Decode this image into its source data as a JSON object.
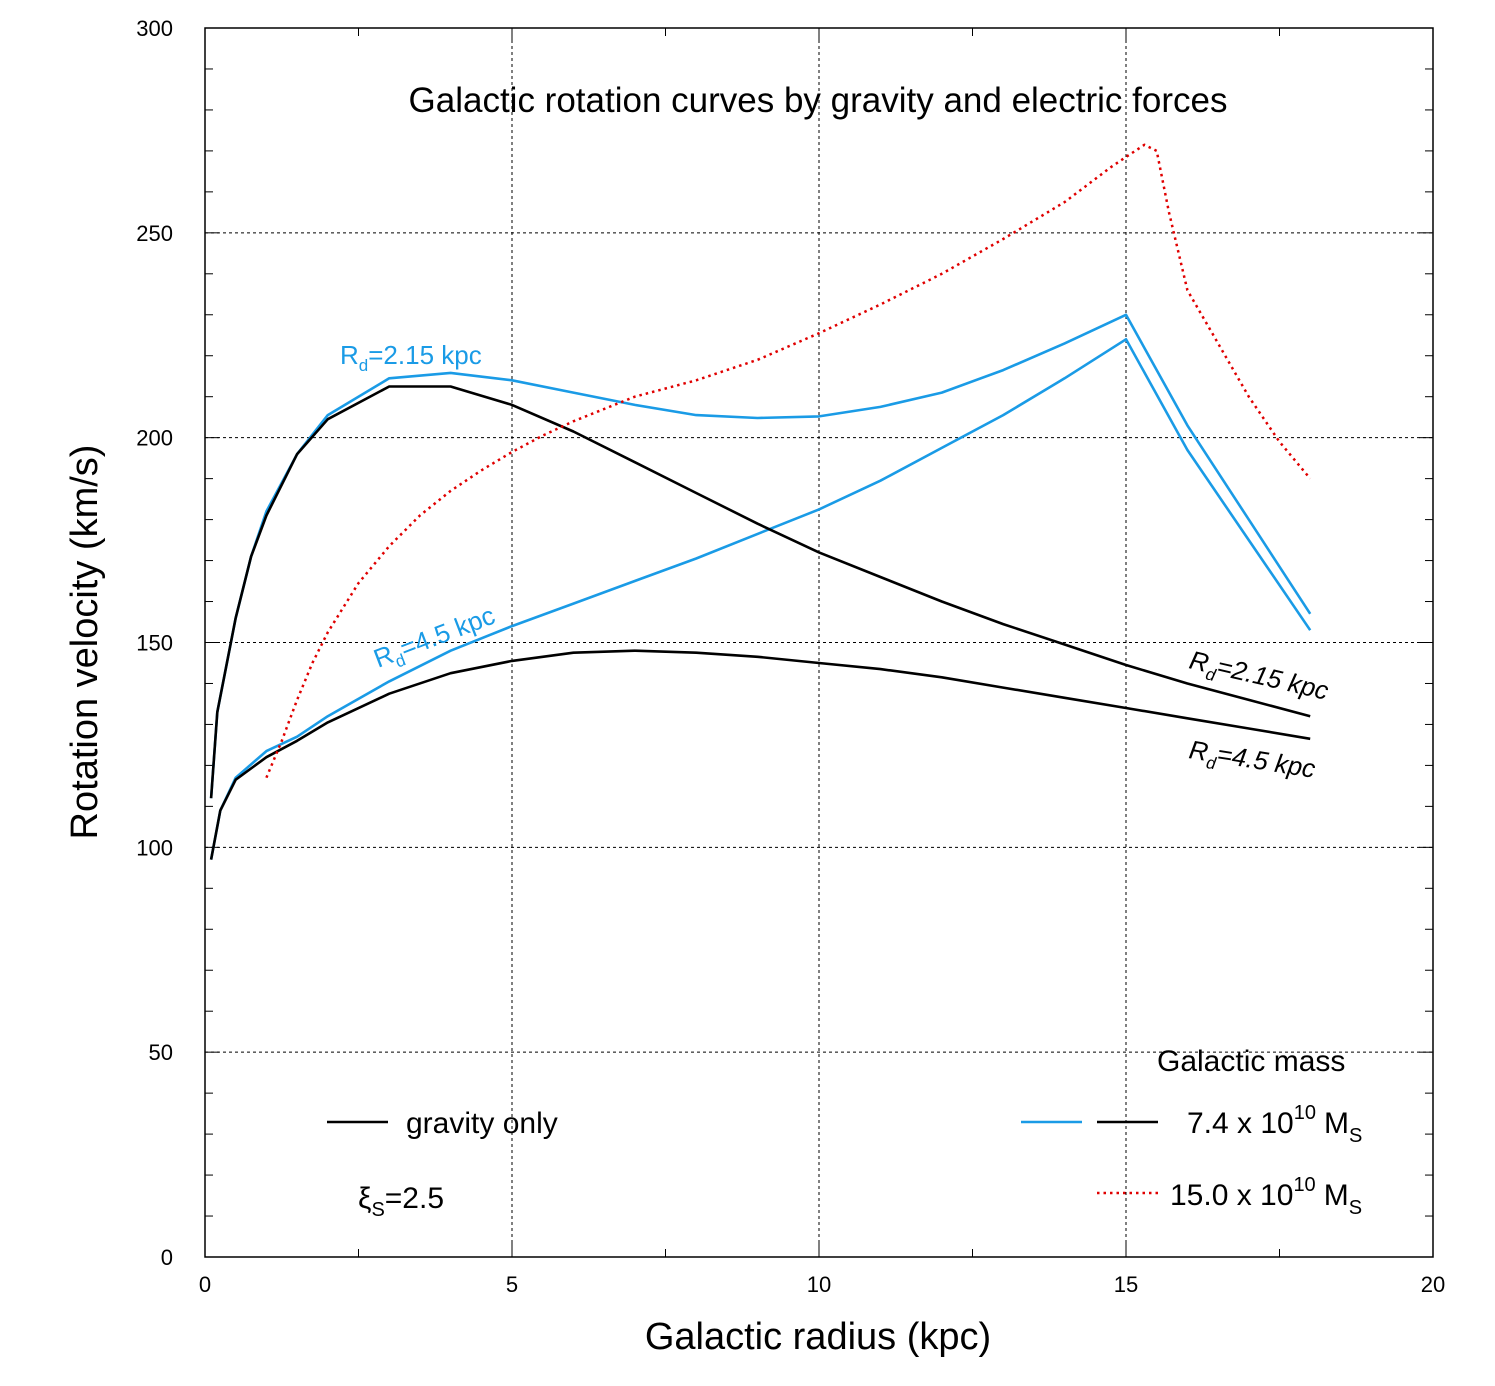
{
  "chart_data": {
    "type": "line",
    "title": "Galactic rotation curves by gravity and electric forces",
    "xlabel": "Galactic radius (kpc)",
    "ylabel": "Rotation velocity (km/s)",
    "xlim": [
      0,
      20
    ],
    "ylim": [
      0,
      300
    ],
    "x_ticks": [
      0,
      5,
      10,
      15,
      20
    ],
    "y_ticks": [
      0,
      50,
      100,
      150,
      200,
      250,
      300
    ],
    "grid": true,
    "legend": {
      "mass_heading": "Galactic mass",
      "gravity_only": "gravity only",
      "mass1": {
        "base": "7.4 x 10",
        "exp": "10",
        "unit": "M",
        "sub": "S"
      },
      "mass2": {
        "base": "15.0 x 10",
        "exp": "10",
        "unit": "M",
        "sub": "S"
      }
    },
    "parameter": {
      "symbol": "ξ",
      "sub": "S",
      "value": "=2.5"
    },
    "labels": {
      "rd215": {
        "main": "R",
        "sub": "d",
        "rest": "=2.15 kpc"
      },
      "rd45": {
        "main": "R",
        "sub": "d",
        "rest": "=4.5 kpc"
      }
    },
    "colors": {
      "blue": "#1a9be6",
      "black": "#000000",
      "red": "#e00000"
    },
    "series": [
      {
        "name": "gravity+electric, Rd=2.15 kpc, 7.4e10 Ms",
        "color": "#1a9be6",
        "dash": "solid",
        "points": [
          [
            0.1,
            112
          ],
          [
            0.2,
            133
          ],
          [
            0.5,
            156
          ],
          [
            0.75,
            171
          ],
          [
            1.0,
            182
          ],
          [
            1.5,
            196
          ],
          [
            2.0,
            205.5
          ],
          [
            3.0,
            214.5
          ],
          [
            4.0,
            215.8
          ],
          [
            5.0,
            214
          ],
          [
            6.0,
            211
          ],
          [
            7.0,
            208
          ],
          [
            8.0,
            205.5
          ],
          [
            9.0,
            204.8
          ],
          [
            10.0,
            205.2
          ],
          [
            11.0,
            207.5
          ],
          [
            12.0,
            211
          ],
          [
            13.0,
            216.5
          ],
          [
            14.0,
            223
          ],
          [
            15.0,
            230
          ],
          [
            16.0,
            203
          ],
          [
            17.0,
            180
          ],
          [
            18.0,
            157
          ]
        ]
      },
      {
        "name": "gravity+electric, Rd=4.5 kpc, 7.4e10 Ms",
        "color": "#1a9be6",
        "dash": "solid",
        "points": [
          [
            0.1,
            97
          ],
          [
            0.25,
            109
          ],
          [
            0.5,
            117
          ],
          [
            1.0,
            123.5
          ],
          [
            1.5,
            127
          ],
          [
            2.0,
            132
          ],
          [
            3.0,
            140.5
          ],
          [
            4.0,
            148
          ],
          [
            5.0,
            154
          ],
          [
            6.0,
            159.5
          ],
          [
            7.0,
            165
          ],
          [
            8.0,
            170.5
          ],
          [
            9.0,
            176.5
          ],
          [
            10.0,
            182.5
          ],
          [
            11.0,
            189.5
          ],
          [
            12.0,
            197.5
          ],
          [
            13.0,
            205.5
          ],
          [
            14.0,
            214.5
          ],
          [
            15.0,
            224
          ],
          [
            16.0,
            197
          ],
          [
            17.0,
            175
          ],
          [
            18.0,
            153
          ]
        ]
      },
      {
        "name": "gravity only, Rd=2.15 kpc",
        "color": "#000000",
        "dash": "solid",
        "points": [
          [
            0.1,
            112
          ],
          [
            0.2,
            133
          ],
          [
            0.5,
            156
          ],
          [
            0.75,
            171
          ],
          [
            1.0,
            181
          ],
          [
            1.5,
            196
          ],
          [
            2.0,
            204.5
          ],
          [
            3.0,
            212.5
          ],
          [
            4.0,
            212.5
          ],
          [
            5.0,
            208
          ],
          [
            6.0,
            201.5
          ],
          [
            7.0,
            194
          ],
          [
            8.0,
            186.5
          ],
          [
            9.0,
            179
          ],
          [
            10.0,
            172
          ],
          [
            11.0,
            166
          ],
          [
            12.0,
            160
          ],
          [
            13.0,
            154.5
          ],
          [
            14.0,
            149.5
          ],
          [
            15.0,
            144.5
          ],
          [
            16.0,
            140
          ],
          [
            17.0,
            136
          ],
          [
            18.0,
            132
          ]
        ]
      },
      {
        "name": "gravity only, Rd=4.5 kpc",
        "color": "#000000",
        "dash": "solid",
        "points": [
          [
            0.1,
            97
          ],
          [
            0.25,
            109
          ],
          [
            0.5,
            116.5
          ],
          [
            1.0,
            122
          ],
          [
            1.5,
            126
          ],
          [
            2.0,
            130.5
          ],
          [
            3.0,
            137.5
          ],
          [
            4.0,
            142.5
          ],
          [
            5.0,
            145.5
          ],
          [
            6.0,
            147.5
          ],
          [
            7.0,
            148
          ],
          [
            8.0,
            147.5
          ],
          [
            9.0,
            146.5
          ],
          [
            10.0,
            145
          ],
          [
            11.0,
            143.5
          ],
          [
            12.0,
            141.5
          ],
          [
            13.0,
            139
          ],
          [
            14.0,
            136.5
          ],
          [
            15.0,
            134
          ],
          [
            16.0,
            131.5
          ],
          [
            17.0,
            129
          ],
          [
            18.0,
            126.5
          ]
        ]
      },
      {
        "name": "gravity+electric, 15.0e10 Ms",
        "color": "#e00000",
        "dash": "dotted",
        "points": [
          [
            1.0,
            117
          ],
          [
            1.25,
            126
          ],
          [
            1.5,
            136
          ],
          [
            1.75,
            145
          ],
          [
            2.0,
            152.5
          ],
          [
            2.5,
            164.5
          ],
          [
            3.0,
            173.5
          ],
          [
            3.5,
            181
          ],
          [
            4.0,
            187
          ],
          [
            4.5,
            192
          ],
          [
            5.0,
            196.5
          ],
          [
            5.5,
            200.5
          ],
          [
            6.0,
            204
          ],
          [
            7.0,
            210
          ],
          [
            8.0,
            214
          ],
          [
            9.0,
            219
          ],
          [
            10.0,
            225.5
          ],
          [
            11.0,
            232.5
          ],
          [
            12.0,
            240
          ],
          [
            13.0,
            248.5
          ],
          [
            14.0,
            257.5
          ],
          [
            14.75,
            266
          ],
          [
            15.0,
            268.5
          ],
          [
            15.3,
            271.5
          ],
          [
            15.5,
            270
          ],
          [
            15.7,
            255
          ],
          [
            16.0,
            236
          ],
          [
            16.5,
            223
          ],
          [
            17.0,
            210
          ],
          [
            17.5,
            199
          ],
          [
            18.0,
            190
          ]
        ]
      }
    ]
  }
}
